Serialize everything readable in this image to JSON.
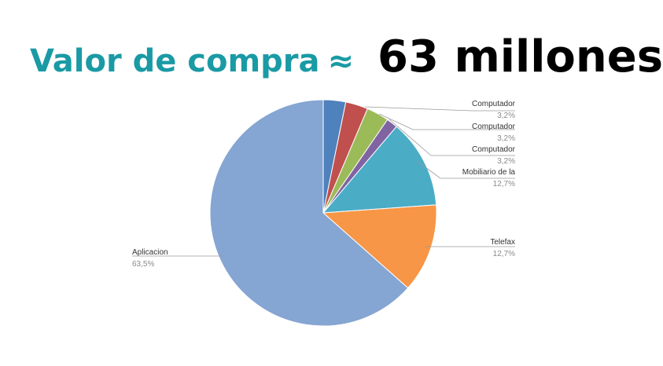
{
  "heading": {
    "label": "Valor de compra",
    "approx": "≈",
    "value": "63 millones"
  },
  "chart_data": {
    "type": "pie",
    "title": "",
    "slices": [
      {
        "label": "Computador",
        "value_text": "3,2%",
        "value": 3.2,
        "color": "#4f81bd"
      },
      {
        "label": "Computador",
        "value_text": "3,2%",
        "value": 3.2,
        "color": "#c0504d"
      },
      {
        "label": "Computador",
        "value_text": "3,2%",
        "value": 3.2,
        "color": "#9bbb59"
      },
      {
        "label": "",
        "value_text": "",
        "value": 1.6,
        "color": "#8064a2"
      },
      {
        "label": "Mobiliario de la",
        "value_text": "12,7%",
        "value": 12.7,
        "color": "#4bacc6"
      },
      {
        "label": "Telefax",
        "value_text": "12,7%",
        "value": 12.7,
        "color": "#f79646"
      },
      {
        "label": "Aplicacion",
        "value_text": "63,5%",
        "value": 63.5,
        "color": "#85a5d2"
      }
    ],
    "legend": "none"
  }
}
